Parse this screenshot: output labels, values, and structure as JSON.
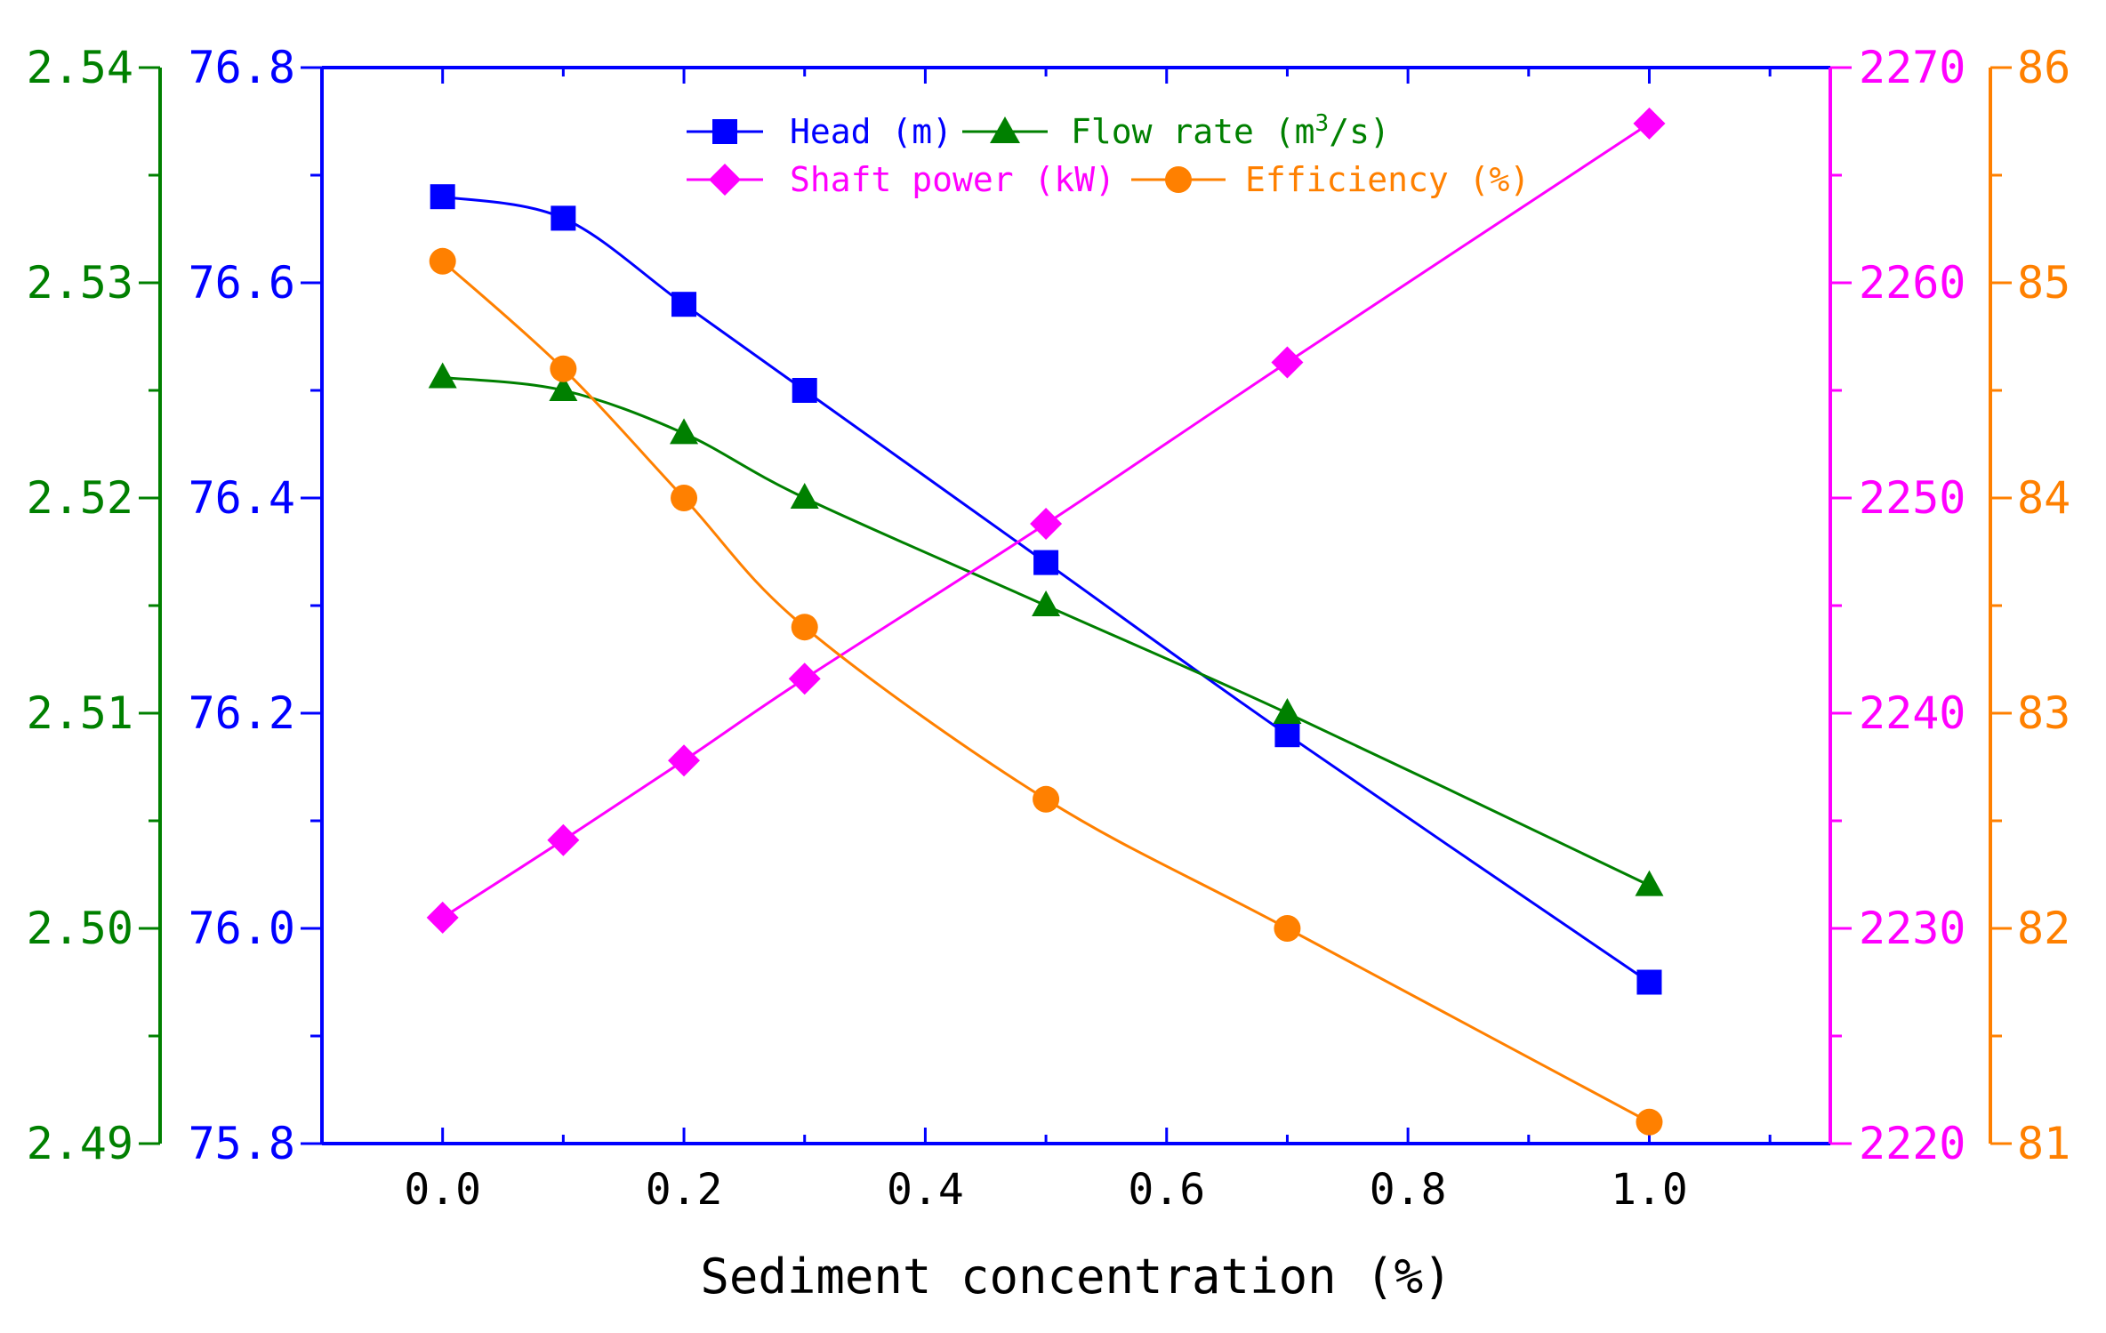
{
  "chart_data": {
    "type": "line",
    "xlabel": "Sediment concentration (%)",
    "xlim": [
      -0.1,
      1.15
    ],
    "xticks": [
      0.0,
      0.2,
      0.4,
      0.6,
      0.8,
      1.0
    ],
    "xtick_labels": [
      "0.0",
      "0.2",
      "0.4",
      "0.6",
      "0.8",
      "1.0"
    ],
    "x": [
      0.0,
      0.1,
      0.2,
      0.3,
      0.5,
      0.7,
      1.0
    ],
    "axes": {
      "flow": {
        "color": "#008000",
        "ylim": [
          2.49,
          2.54
        ],
        "ticks": [
          2.49,
          2.5,
          2.51,
          2.52,
          2.53,
          2.54
        ],
        "tick_labels": [
          "2.49",
          "2.50",
          "2.51",
          "2.52",
          "2.53",
          "2.54"
        ]
      },
      "head": {
        "color": "#0000ff",
        "ylim": [
          75.8,
          76.8
        ],
        "ticks": [
          75.8,
          76.0,
          76.2,
          76.4,
          76.6,
          76.8
        ],
        "tick_labels": [
          "75.8",
          "76.0",
          "76.2",
          "76.4",
          "76.6",
          "76.8"
        ]
      },
      "power": {
        "color": "#ff00ff",
        "ylim": [
          2220,
          2270
        ],
        "ticks": [
          2220,
          2230,
          2240,
          2250,
          2260,
          2270
        ],
        "tick_labels": [
          "2220",
          "2230",
          "2240",
          "2250",
          "2260",
          "2270"
        ]
      },
      "eff": {
        "color": "#ff8000",
        "ylim": [
          81,
          86
        ],
        "ticks": [
          81,
          82,
          83,
          84,
          85,
          86
        ],
        "tick_labels": [
          "81",
          "82",
          "83",
          "84",
          "85",
          "86"
        ]
      }
    },
    "series": [
      {
        "key": "head",
        "name": "Head (m)",
        "axis": "head",
        "color": "#0000ff",
        "marker": "square",
        "values": [
          76.68,
          76.66,
          76.58,
          76.5,
          76.34,
          76.18,
          75.95
        ]
      },
      {
        "key": "flow",
        "name": "Flow rate (m³/s)",
        "axis": "flow",
        "color": "#008000",
        "marker": "triangle",
        "values": [
          2.5256,
          2.525,
          2.523,
          2.52,
          2.515,
          2.51,
          2.502
        ]
      },
      {
        "key": "power",
        "name": "Shaft power (kW)",
        "axis": "power",
        "color": "#ff00ff",
        "marker": "diamond",
        "values": [
          2230.5,
          2234.1,
          2237.8,
          2241.6,
          2248.8,
          2256.3,
          2267.4
        ]
      },
      {
        "key": "eff",
        "name": "Efficiency (%)",
        "axis": "eff",
        "color": "#ff8000",
        "marker": "circle",
        "values": [
          85.1,
          84.6,
          84.0,
          83.4,
          82.6,
          82.0,
          81.1
        ]
      }
    ],
    "legend": {
      "placement": "top",
      "head_label": "Head (m)",
      "flow_label_prefix": "Flow rate (m",
      "flow_label_sup": "3",
      "flow_label_suffix": "/s)",
      "power_label": "Shaft power (kW)",
      "eff_label": "Efficiency (%)"
    }
  }
}
